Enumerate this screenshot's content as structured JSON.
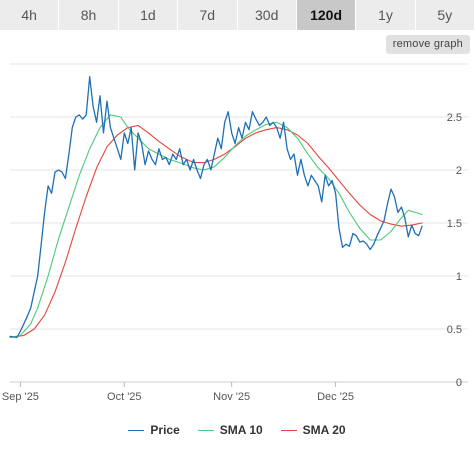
{
  "tabs": [
    {
      "label": "4h",
      "active": false
    },
    {
      "label": "8h",
      "active": false
    },
    {
      "label": "1d",
      "active": false
    },
    {
      "label": "7d",
      "active": false
    },
    {
      "label": "30d",
      "active": false
    },
    {
      "label": "120d",
      "active": true
    },
    {
      "label": "1y",
      "active": false
    },
    {
      "label": "5y",
      "active": false
    }
  ],
  "remove_graph_label": "remove graph",
  "chart_data": {
    "type": "line",
    "title": "",
    "xlabel": "",
    "ylabel": "",
    "x_ticks": [
      {
        "label": "Sep '25",
        "day": 0
      },
      {
        "label": "Oct '25",
        "day": 30
      },
      {
        "label": "Nov '25",
        "day": 61
      },
      {
        "label": "Dec '25",
        "day": 91
      }
    ],
    "y_ticks": [
      0,
      0.5,
      1,
      1.5,
      2,
      2.5
    ],
    "ylim": [
      0,
      3
    ],
    "xlim_days": [
      -3,
      120
    ],
    "grid": true,
    "legend_position": "bottom",
    "series": [
      {
        "name": "Price",
        "color": "#1f6fb5",
        "points": [
          [
            -3,
            0.43
          ],
          [
            -1,
            0.42
          ],
          [
            0,
            0.48
          ],
          [
            1,
            0.55
          ],
          [
            2,
            0.62
          ],
          [
            3,
            0.7
          ],
          [
            4,
            0.85
          ],
          [
            5,
            1.0
          ],
          [
            6,
            1.3
          ],
          [
            7,
            1.6
          ],
          [
            8,
            1.85
          ],
          [
            9,
            1.78
          ],
          [
            10,
            1.98
          ],
          [
            11,
            2.0
          ],
          [
            12,
            1.98
          ],
          [
            13,
            1.92
          ],
          [
            14,
            2.15
          ],
          [
            15,
            2.4
          ],
          [
            16,
            2.5
          ],
          [
            17,
            2.52
          ],
          [
            18,
            2.48
          ],
          [
            19,
            2.52
          ],
          [
            20,
            2.88
          ],
          [
            21,
            2.6
          ],
          [
            22,
            2.45
          ],
          [
            23,
            2.7
          ],
          [
            24,
            2.35
          ],
          [
            25,
            2.65
          ],
          [
            26,
            2.4
          ],
          [
            27,
            2.3
          ],
          [
            28,
            2.2
          ],
          [
            29,
            2.1
          ],
          [
            30,
            2.35
          ],
          [
            31,
            2.25
          ],
          [
            32,
            2.4
          ],
          [
            33,
            2.0
          ],
          [
            34,
            2.35
          ],
          [
            35,
            2.25
          ],
          [
            36,
            2.05
          ],
          [
            37,
            2.18
          ],
          [
            38,
            2.1
          ],
          [
            39,
            2.05
          ],
          [
            40,
            2.2
          ],
          [
            41,
            2.1
          ],
          [
            42,
            2.12
          ],
          [
            43,
            2.05
          ],
          [
            44,
            2.15
          ],
          [
            45,
            2.1
          ],
          [
            46,
            2.2
          ],
          [
            47,
            2.05
          ],
          [
            48,
            2.1
          ],
          [
            49,
            2.0
          ],
          [
            50,
            2.1
          ],
          [
            51,
            2.0
          ],
          [
            52,
            1.92
          ],
          [
            53,
            2.05
          ],
          [
            54,
            2.1
          ],
          [
            55,
            2.0
          ],
          [
            56,
            2.15
          ],
          [
            57,
            2.3
          ],
          [
            58,
            2.2
          ],
          [
            59,
            2.45
          ],
          [
            60,
            2.55
          ],
          [
            61,
            2.35
          ],
          [
            62,
            2.25
          ],
          [
            63,
            2.4
          ],
          [
            64,
            2.3
          ],
          [
            65,
            2.45
          ],
          [
            66,
            2.38
          ],
          [
            67,
            2.55
          ],
          [
            68,
            2.48
          ],
          [
            69,
            2.42
          ],
          [
            70,
            2.45
          ],
          [
            71,
            2.5
          ],
          [
            72,
            2.42
          ],
          [
            73,
            2.45
          ],
          [
            74,
            2.4
          ],
          [
            75,
            2.3
          ],
          [
            76,
            2.45
          ],
          [
            77,
            2.2
          ],
          [
            78,
            2.1
          ],
          [
            79,
            2.15
          ],
          [
            80,
            1.95
          ],
          [
            81,
            2.1
          ],
          [
            82,
            1.95
          ],
          [
            83,
            1.85
          ],
          [
            84,
            1.95
          ],
          [
            85,
            1.9
          ],
          [
            86,
            1.85
          ],
          [
            87,
            1.7
          ],
          [
            88,
            1.95
          ],
          [
            89,
            1.85
          ],
          [
            90,
            1.9
          ],
          [
            91,
            1.78
          ],
          [
            92,
            1.45
          ],
          [
            93,
            1.27
          ],
          [
            94,
            1.3
          ],
          [
            95,
            1.28
          ],
          [
            96,
            1.4
          ],
          [
            97,
            1.38
          ],
          [
            98,
            1.32
          ],
          [
            99,
            1.33
          ],
          [
            100,
            1.3
          ],
          [
            101,
            1.25
          ],
          [
            102,
            1.3
          ],
          [
            103,
            1.38
          ],
          [
            104,
            1.45
          ],
          [
            105,
            1.52
          ],
          [
            106,
            1.68
          ],
          [
            107,
            1.82
          ],
          [
            108,
            1.75
          ],
          [
            109,
            1.6
          ],
          [
            110,
            1.65
          ],
          [
            111,
            1.55
          ],
          [
            112,
            1.37
          ],
          [
            113,
            1.48
          ],
          [
            114,
            1.4
          ],
          [
            115,
            1.38
          ],
          [
            116,
            1.47
          ]
        ]
      },
      {
        "name": "SMA 10",
        "color": "#4cc97a",
        "points": [
          [
            -3,
            0.42
          ],
          [
            0,
            0.44
          ],
          [
            3,
            0.55
          ],
          [
            5,
            0.7
          ],
          [
            8,
            1.0
          ],
          [
            11,
            1.35
          ],
          [
            14,
            1.65
          ],
          [
            17,
            1.95
          ],
          [
            20,
            2.2
          ],
          [
            23,
            2.4
          ],
          [
            26,
            2.52
          ],
          [
            29,
            2.5
          ],
          [
            31,
            2.4
          ],
          [
            34,
            2.3
          ],
          [
            37,
            2.2
          ],
          [
            40,
            2.15
          ],
          [
            43,
            2.1
          ],
          [
            46,
            2.07
          ],
          [
            50,
            2.02
          ],
          [
            53,
            2.0
          ],
          [
            56,
            2.03
          ],
          [
            59,
            2.12
          ],
          [
            62,
            2.23
          ],
          [
            65,
            2.32
          ],
          [
            68,
            2.38
          ],
          [
            71,
            2.43
          ],
          [
            74,
            2.45
          ],
          [
            77,
            2.4
          ],
          [
            80,
            2.3
          ],
          [
            83,
            2.15
          ],
          [
            86,
            2.02
          ],
          [
            89,
            1.92
          ],
          [
            92,
            1.78
          ],
          [
            95,
            1.6
          ],
          [
            98,
            1.45
          ],
          [
            101,
            1.34
          ],
          [
            104,
            1.34
          ],
          [
            107,
            1.42
          ],
          [
            110,
            1.55
          ],
          [
            112,
            1.62
          ],
          [
            114,
            1.6
          ],
          [
            116,
            1.58
          ]
        ]
      },
      {
        "name": "SMA 20",
        "color": "#e2473b",
        "points": [
          [
            -3,
            0.42
          ],
          [
            1,
            0.44
          ],
          [
            4,
            0.5
          ],
          [
            7,
            0.63
          ],
          [
            10,
            0.85
          ],
          [
            13,
            1.13
          ],
          [
            16,
            1.45
          ],
          [
            19,
            1.75
          ],
          [
            22,
            2.02
          ],
          [
            25,
            2.22
          ],
          [
            28,
            2.33
          ],
          [
            31,
            2.4
          ],
          [
            34,
            2.42
          ],
          [
            37,
            2.35
          ],
          [
            40,
            2.27
          ],
          [
            43,
            2.2
          ],
          [
            46,
            2.13
          ],
          [
            50,
            2.07
          ],
          [
            53,
            2.07
          ],
          [
            56,
            2.1
          ],
          [
            59,
            2.15
          ],
          [
            62,
            2.22
          ],
          [
            65,
            2.3
          ],
          [
            68,
            2.35
          ],
          [
            71,
            2.38
          ],
          [
            74,
            2.4
          ],
          [
            77,
            2.38
          ],
          [
            80,
            2.33
          ],
          [
            83,
            2.25
          ],
          [
            86,
            2.13
          ],
          [
            89,
            2.02
          ],
          [
            92,
            1.9
          ],
          [
            95,
            1.78
          ],
          [
            98,
            1.67
          ],
          [
            101,
            1.58
          ],
          [
            104,
            1.52
          ],
          [
            107,
            1.49
          ],
          [
            110,
            1.47
          ],
          [
            113,
            1.48
          ],
          [
            116,
            1.5
          ]
        ]
      }
    ]
  }
}
